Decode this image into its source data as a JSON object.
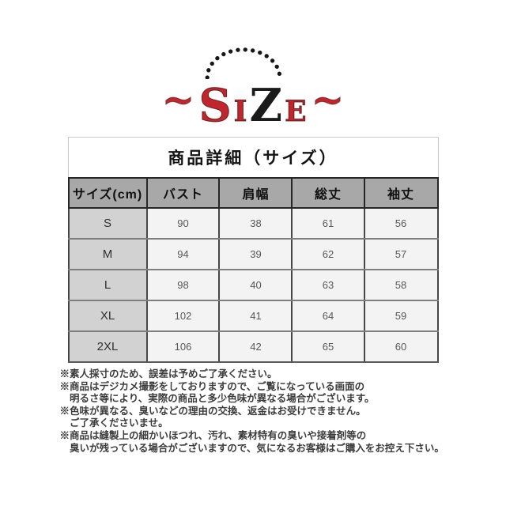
{
  "logo": {
    "arc_icon": "dotted-arc",
    "text_parts": [
      {
        "text": "~"
      },
      {
        "text": "S"
      },
      {
        "text": "I"
      },
      {
        "text": "Z"
      },
      {
        "text": "E"
      },
      {
        "text": "~"
      }
    ]
  },
  "size_card": {
    "title": "商品詳細（サイズ）",
    "table": {
      "columns": [
        "サイズ(cm)",
        "バスト",
        "肩幅",
        "総丈",
        "袖丈"
      ],
      "rows": [
        {
          "size": "S",
          "values": [
            "90",
            "38",
            "61",
            "56"
          ]
        },
        {
          "size": "M",
          "values": [
            "94",
            "39",
            "62",
            "57"
          ]
        },
        {
          "size": "L",
          "values": [
            "98",
            "40",
            "63",
            "58"
          ]
        },
        {
          "size": "XL",
          "values": [
            "102",
            "41",
            "64",
            "59"
          ]
        },
        {
          "size": "2XL",
          "values": [
            "106",
            "42",
            "65",
            "60"
          ]
        }
      ]
    }
  },
  "notes": {
    "lines": [
      "※素人採寸のため、誤差は予めご了承ください。",
      "※商品はデジカメ撮影をしておりますので、ご覧になっている画面の",
      "　明るさ等により、実際の商品と多少色味が異なる場合がございます。",
      "※色味が異なる、臭いなどの理由の交換、返金はお受けできません。",
      "　ご了承くださいませ。",
      "※商品は縫製上の細かいほつれ、汚れ、素材特有の臭いや接着剤等の",
      "　臭いが残っている場合がございますので、気になるお客様はご購入をお控え下さい。"
    ]
  },
  "colors": {
    "logo_red": "#c0262c",
    "logo_black": "#1a1a1a",
    "header_bg": "#a8a8a8",
    "size_column_bg": "#d2d2d2",
    "cell_bg": "#f3f3f3"
  }
}
